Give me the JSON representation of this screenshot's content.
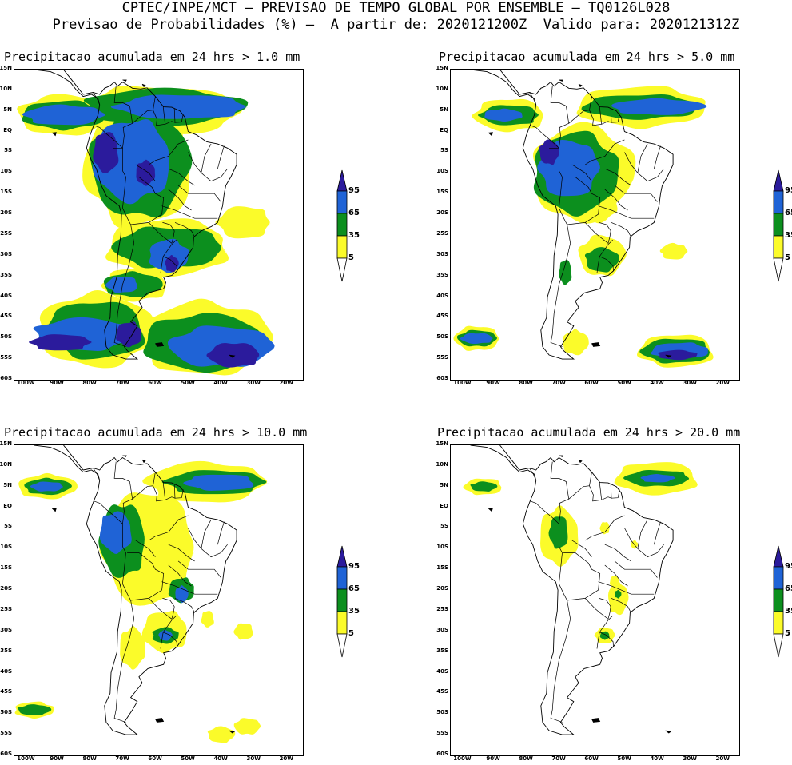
{
  "header": {
    "line1": "CPTEC/INPE/MCT — PREVISAO DE TEMPO GLOBAL POR ENSEMBLE — TQ0126L028",
    "line2": "Previsao de Probabilidades (%) —  A partir de: 2020121200Z  Valido para: 2020121312Z"
  },
  "panels": [
    {
      "title": "Precipitacao acumulada em 24 hrs > 1.0 mm"
    },
    {
      "title": "Precipitacao acumulada em 24 hrs > 5.0 mm"
    },
    {
      "title": "Precipitacao acumulada em 24 hrs > 10.0 mm"
    },
    {
      "title": "Precipitacao acumulada em 24 hrs > 20.0 mm"
    }
  ],
  "lat_labels": [
    "15N",
    "10N",
    "5N",
    "EQ",
    "5S",
    "10S",
    "15S",
    "20S",
    "25S",
    "30S",
    "35S",
    "40S",
    "45S",
    "50S",
    "55S",
    "60S"
  ],
  "lon_labels": [
    "100W",
    "90W",
    "80W",
    "70W",
    "60W",
    "50W",
    "40W",
    "30W",
    "20W"
  ],
  "legend": {
    "levels": [
      "95",
      "65",
      "35",
      "5"
    ],
    "colors": [
      "#2b1b9c",
      "#1f63d6",
      "#0c8f1e",
      "#fbfb2a"
    ]
  }
}
